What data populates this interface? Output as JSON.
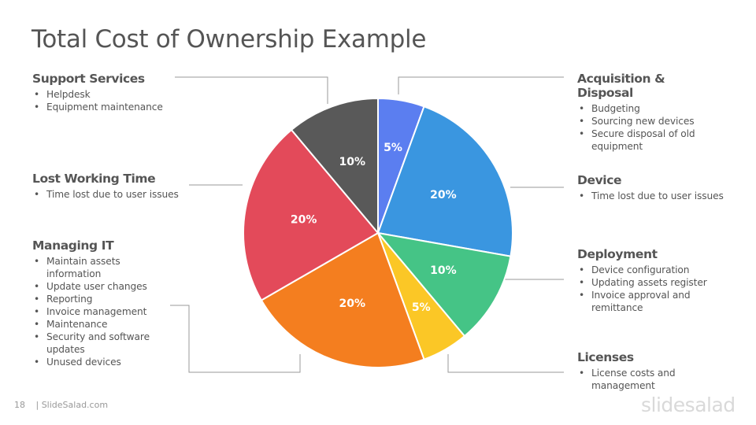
{
  "title": "Total Cost of Ownership Example",
  "chart_data": {
    "type": "pie",
    "start": "top",
    "direction": "clockwise",
    "slices": [
      {
        "label": "Acquisition & Disposal",
        "value": 5,
        "display": "5%",
        "color": "#5b7ef0"
      },
      {
        "label": "Device",
        "value": 20,
        "display": "20%",
        "color": "#3a96e0"
      },
      {
        "label": "Deployment",
        "value": 10,
        "display": "10%",
        "color": "#45c486"
      },
      {
        "label": "Licenses",
        "value": 5,
        "display": "5%",
        "color": "#fbc726"
      },
      {
        "label": "Managing IT",
        "value": 20,
        "display": "20%",
        "color": "#f47e1f"
      },
      {
        "label": "Lost Working Time",
        "value": 20,
        "display": "20%",
        "color": "#e34a5a"
      },
      {
        "label": "Support Services",
        "value": 10,
        "display": "10%",
        "color": "#595959"
      }
    ]
  },
  "categories": [
    {
      "key": "support",
      "heading": "Support Services",
      "items": [
        "Helpdesk",
        "Equipment maintenance"
      ]
    },
    {
      "key": "lost",
      "heading": "Lost Working Time",
      "items": [
        "Time lost due to user issues"
      ]
    },
    {
      "key": "managing",
      "heading": "Managing IT",
      "items": [
        "Maintain assets information",
        "Update user changes",
        "Reporting",
        "Invoice management",
        "Maintenance",
        "Security and software updates",
        "Unused devices"
      ]
    },
    {
      "key": "acquisition",
      "heading": "Acquisition & Disposal",
      "items": [
        "Budgeting",
        "Sourcing new devices",
        "Secure disposal of old equipment"
      ]
    },
    {
      "key": "device",
      "heading": "Device",
      "items": [
        "Time lost due to user issues"
      ]
    },
    {
      "key": "deployment",
      "heading": "Deployment",
      "items": [
        "Device configuration",
        "Updating assets register",
        "Invoice approval and remittance"
      ]
    },
    {
      "key": "licenses",
      "heading": "Licenses",
      "items": [
        "License costs and management"
      ]
    }
  ],
  "footer": {
    "page_number": "18",
    "site": "| SlideSalad.com",
    "brand": "slidesalad"
  }
}
